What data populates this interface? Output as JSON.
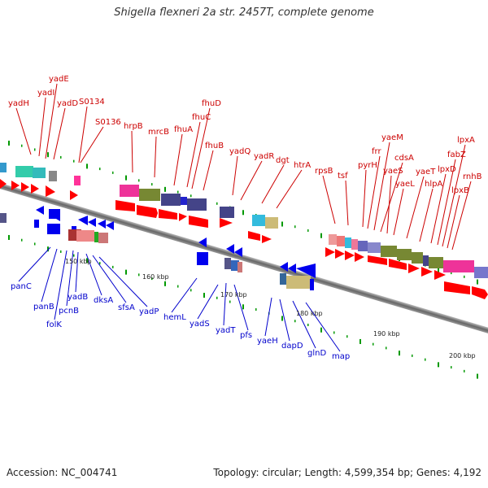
{
  "title": "Shigella flexneri 2a str. 2457T, complete genome",
  "footer": {
    "accession": "Accession: NC_004741",
    "summary": "Topology: circular; Length: 4,599,354 bp; Genes: 4,192"
  },
  "kbp_labels": [
    "150 kbp",
    "160 kbp",
    "170 kbp",
    "180 kbp",
    "190 kbp",
    "200 kbp"
  ],
  "genes_top": [
    "yadH",
    "yadI",
    "yadE",
    "yadD",
    "S0134",
    "S0136",
    "hrpB",
    "mrcB",
    "fhuA",
    "fhuC",
    "fhuD",
    "fhuB",
    "yadQ",
    "yadR",
    "dgt",
    "htrA",
    "rpsB",
    "tsf",
    "pyrH",
    "frr",
    "yaeM",
    "cdsA",
    "yaeS",
    "yaeL",
    "yaeT",
    "hlpA",
    "lpxD",
    "fabZ",
    "lpxA",
    "lpxB",
    "rnhB"
  ],
  "genes_bottom": [
    "panC",
    "panB",
    "folK",
    "pcnB",
    "yadB",
    "dksA",
    "sfsA",
    "yadP",
    "hemL",
    "yadS",
    "yadT",
    "pfs",
    "yaeH",
    "dapD",
    "glnD",
    "map"
  ],
  "colors": {
    "forward_strand": "#ff0000",
    "reverse_strand": "#0000ee",
    "top_label": "#cc0000",
    "bottom_label": "#0000cc",
    "backbone": "#777777"
  }
}
